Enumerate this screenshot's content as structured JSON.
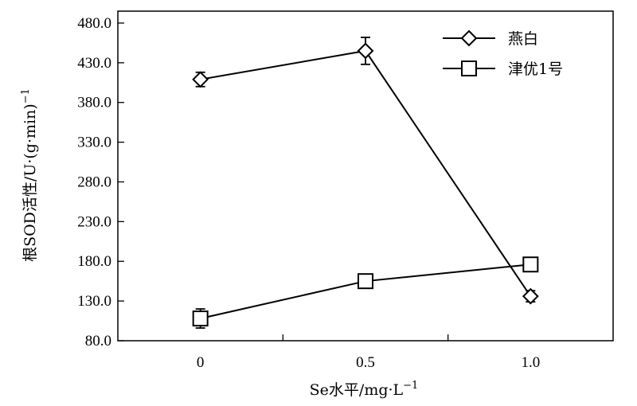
{
  "chart_data": {
    "type": "line",
    "title": "",
    "xlabel": "Se水平/mg·L",
    "xlabel_sup": "−1",
    "ylabel": "根SOD活性/U·(g·min)",
    "ylabel_sup": "−1",
    "categories": [
      "0",
      "0.5",
      "1.0"
    ],
    "x": [
      0,
      0.5,
      1.0
    ],
    "xlim": [
      -0.25,
      1.25
    ],
    "ylim": [
      80,
      495
    ],
    "y_ticks": [
      80,
      130,
      180,
      230,
      280,
      330,
      380,
      430,
      480
    ],
    "y_tick_labels": [
      "80.0",
      "130.0",
      "180.0",
      "230.0",
      "280.0",
      "330.0",
      "380.0",
      "430.0",
      "480.0"
    ],
    "grid": false,
    "legend_position": "top-right",
    "series": [
      {
        "name": "燕白",
        "marker": "diamond",
        "values": [
          409,
          445,
          136
        ],
        "errors": [
          9,
          17,
          7
        ]
      },
      {
        "name": "津优1号",
        "marker": "square",
        "values": [
          108,
          155,
          176
        ],
        "errors": [
          12,
          0,
          0
        ]
      }
    ]
  }
}
